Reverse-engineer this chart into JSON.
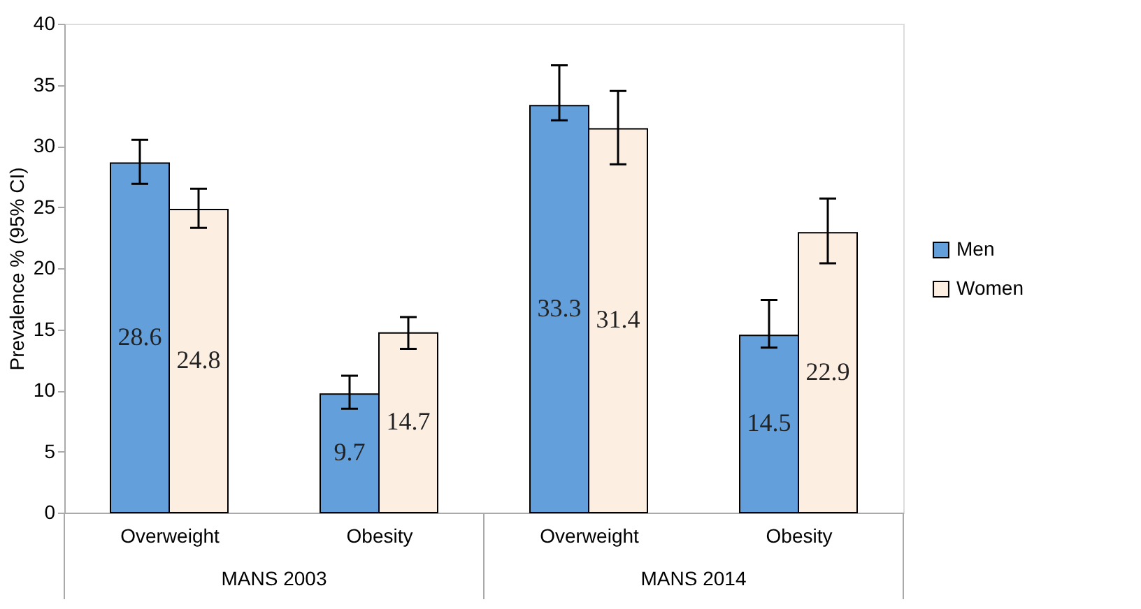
{
  "chart_data": {
    "type": "bar",
    "ylabel": "Prevalence % (95% CI)",
    "categories": [
      "Overweight",
      "Obesity",
      "Overweight",
      "Obesity"
    ],
    "annotations": [
      "MANS 2003",
      "MANS 2014"
    ],
    "series": [
      {
        "name": "Men",
        "color": "#629fdb",
        "values": [
          28.6,
          9.7,
          33.3,
          14.5
        ],
        "errors": [
          [
            26.9,
            30.5
          ],
          [
            8.5,
            11.2
          ],
          [
            32.1,
            36.6
          ],
          [
            13.5,
            17.4
          ]
        ]
      },
      {
        "name": "Women",
        "color": "#fdeee2",
        "values": [
          24.8,
          14.7,
          31.4,
          22.9
        ],
        "errors": [
          [
            23.3,
            26.5
          ],
          [
            13.4,
            16.0
          ],
          [
            28.5,
            34.5
          ],
          [
            20.4,
            25.7
          ]
        ]
      }
    ],
    "ylim": [
      0,
      40
    ],
    "yticks": [
      0,
      5,
      10,
      15,
      20,
      25,
      30,
      35,
      40
    ],
    "grid": false,
    "legend": "right",
    "data_labels": true
  }
}
